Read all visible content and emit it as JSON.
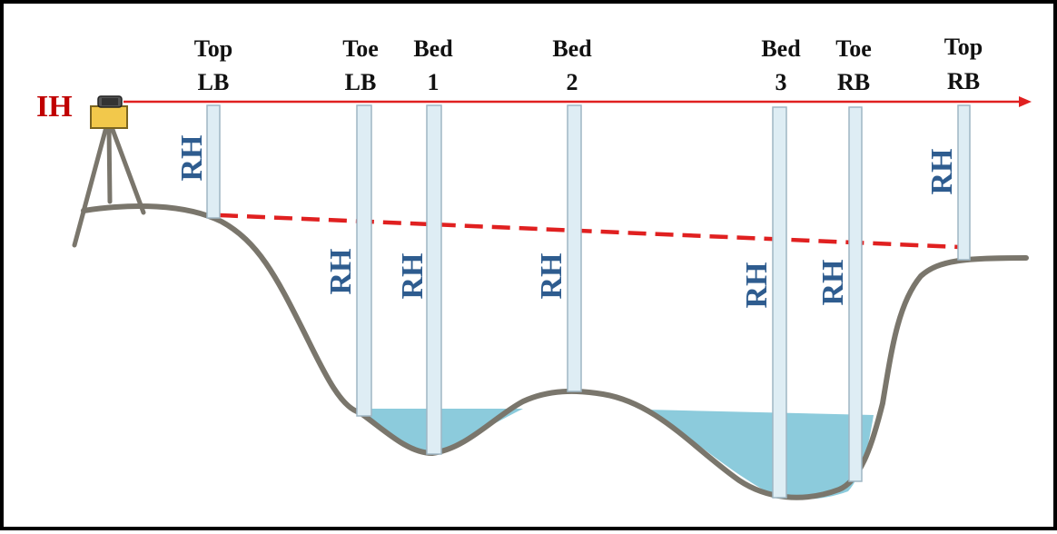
{
  "instrument": {
    "label": "IH"
  },
  "stations": [
    {
      "line1": "Top",
      "line2": "LB"
    },
    {
      "line1": "Toe",
      "line2": "LB"
    },
    {
      "line1": "Bed",
      "line2": "1"
    },
    {
      "line1": "Bed",
      "line2": "2"
    },
    {
      "line1": "Bed",
      "line2": "3"
    },
    {
      "line1": "Toe",
      "line2": "RB"
    },
    {
      "line1": "Top",
      "line2": "RB"
    }
  ],
  "rod_label": "RH",
  "colors": {
    "sight_line": "#e02020",
    "water": "#8ccbdc",
    "ground": "#7a766c",
    "rh_text": "#2e5c8f",
    "ih_text": "#c00000",
    "rod_fill": "#deedf4"
  }
}
